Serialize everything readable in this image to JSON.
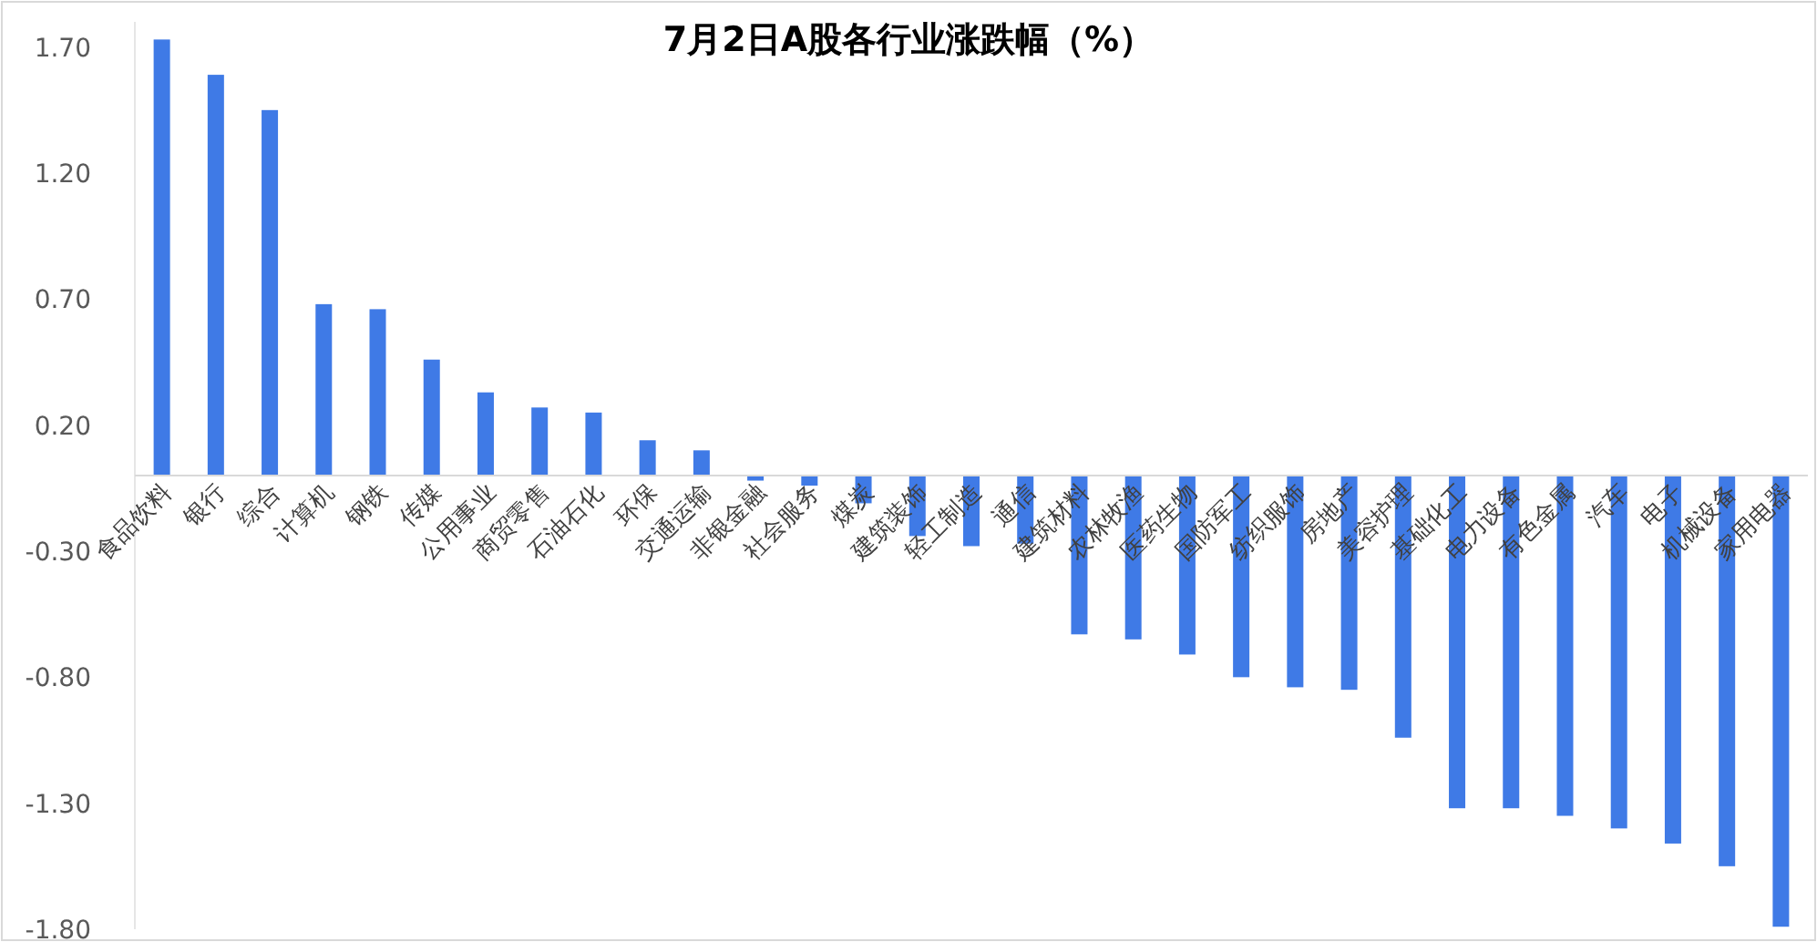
{
  "chart_data": {
    "type": "bar",
    "title": "7月2日A股各行业涨跌幅（%）",
    "categories": [
      "食品饮料",
      "银行",
      "综合",
      "计算机",
      "钢铁",
      "传媒",
      "公用事业",
      "商贸零售",
      "石油石化",
      "环保",
      "交通运输",
      "非银金融",
      "社会服务",
      "煤炭",
      "建筑装饰",
      "轻工制造",
      "通信",
      "建筑材料",
      "农林牧渔",
      "医药生物",
      "国防军工",
      "纺织服饰",
      "房地产",
      "美容护理",
      "基础化工",
      "电力设备",
      "有色金属",
      "汽车",
      "电子",
      "机械设备",
      "家用电器"
    ],
    "values": [
      1.73,
      1.59,
      1.45,
      0.68,
      0.66,
      0.46,
      0.33,
      0.27,
      0.25,
      0.14,
      0.1,
      -0.02,
      -0.04,
      -0.11,
      -0.24,
      -0.28,
      -0.27,
      -0.63,
      -0.65,
      -0.71,
      -0.8,
      -0.84,
      -0.85,
      -1.04,
      -1.32,
      -1.32,
      -1.35,
      -1.4,
      -1.46,
      -1.55,
      -1.79
    ],
    "color": "#3f7ae6",
    "ylim": [
      -1.8,
      1.8
    ],
    "yticks": [
      {
        "value": 1.7,
        "label": "1.70"
      },
      {
        "value": 1.2,
        "label": "1.20"
      },
      {
        "value": 0.7,
        "label": "0.70"
      },
      {
        "value": 0.2,
        "label": "0.20"
      },
      {
        "value": -0.3,
        "label": "-0.30"
      },
      {
        "value": -0.8,
        "label": "-0.80"
      },
      {
        "value": -1.3,
        "label": "-1.30"
      },
      {
        "value": -1.8,
        "label": "-1.80"
      }
    ],
    "grid": false
  }
}
